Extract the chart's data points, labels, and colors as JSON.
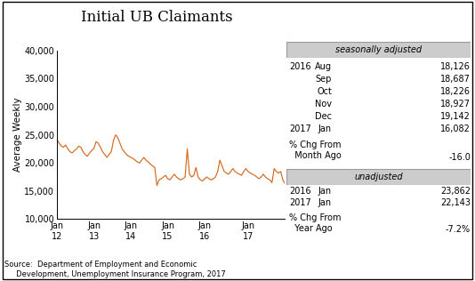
{
  "title": "Initial UB Claimants",
  "ylabel": "Average Weekly",
  "ylim": [
    10000,
    40000
  ],
  "yticks": [
    10000,
    15000,
    20000,
    25000,
    30000,
    35000,
    40000
  ],
  "ytick_labels": [
    "10,000",
    "15,000",
    "20,000",
    "25,000",
    "30,000",
    "35,000",
    "40,000"
  ],
  "xtick_labels": [
    "Jan\n12",
    "Jan\n13",
    "Jan\n14",
    "Jan\n15",
    "Jan\n16",
    "Jan\n17"
  ],
  "line_color": "#D2691E",
  "source_text": "Source:  Department of Employment and Economic\n     Development, Unemployment Insurance Program, 2017",
  "sa_box_label": "seasonally adjusted",
  "sa_data": [
    [
      "2016",
      "Aug",
      "18,126"
    ],
    [
      "",
      "Sep",
      "18,687"
    ],
    [
      "",
      "Oct",
      "18,226"
    ],
    [
      "",
      "Nov",
      "18,927"
    ],
    [
      "",
      "Dec",
      "19,142"
    ],
    [
      "2017",
      "Jan",
      "16,082"
    ]
  ],
  "sa_pct_label": "% Chg From\n  Month Ago",
  "sa_pct_value": "-16.0",
  "ua_box_label": "unadjusted",
  "ua_data": [
    [
      "2016",
      "Jan",
      "23,862"
    ],
    [
      "2017",
      "Jan",
      "22,143"
    ]
  ],
  "ua_pct_label": "% Chg From\n  Year Ago",
  "ua_pct_value": "-7.2%",
  "series": [
    24200,
    23500,
    23000,
    22800,
    23200,
    22500,
    22000,
    21800,
    22200,
    22500,
    23000,
    22800,
    22000,
    21500,
    21200,
    21800,
    22200,
    22600,
    23800,
    23500,
    22800,
    22000,
    21500,
    21000,
    21500,
    22000,
    24000,
    25000,
    24500,
    23500,
    22500,
    22000,
    21500,
    21200,
    21000,
    20800,
    20500,
    20200,
    20000,
    20500,
    21000,
    20500,
    20200,
    19800,
    19500,
    19200,
    16000,
    17000,
    17200,
    17500,
    17800,
    17200,
    17000,
    17500,
    18000,
    17500,
    17200,
    17000,
    17200,
    17500,
    22500,
    18000,
    17500,
    17800,
    19200,
    17500,
    17000,
    16800,
    17200,
    17500,
    17200,
    17000,
    17200,
    17500,
    18500,
    20500,
    19500,
    18500,
    18200,
    18000,
    18500,
    19000,
    18500,
    18200,
    18000,
    17800,
    18500,
    19000,
    18500,
    18200,
    18000,
    17800,
    17500,
    17200,
    17500,
    18000,
    17500,
    17200,
    17000,
    16500,
    19000,
    18500,
    18200,
    18500,
    17000,
    16300
  ]
}
